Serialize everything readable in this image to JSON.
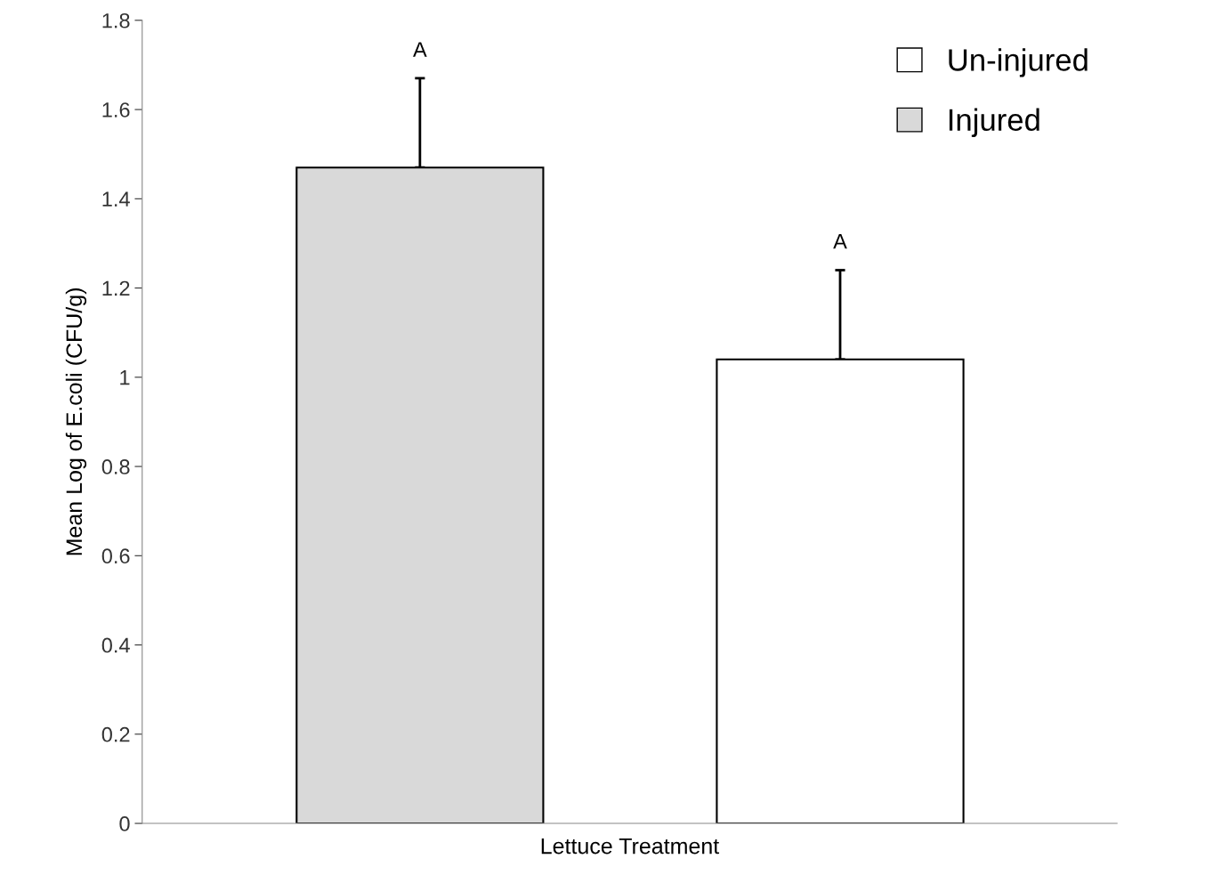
{
  "chart_data": {
    "type": "bar",
    "xlabel": "Lettuce Treatment",
    "ylabel": "Mean Log of E.coli (CFU/g)",
    "categories": [
      null,
      null
    ],
    "series": [
      {
        "name": "Un-injured",
        "color": "#ffffff",
        "values": [
          null,
          1.04
        ],
        "errors": [
          null,
          [
            1.04,
            1.24
          ]
        ]
      },
      {
        "name": "Injured",
        "color": "#d9d9d9",
        "values": [
          1.47,
          null
        ],
        "errors": [
          [
            1.47,
            1.67
          ],
          null
        ]
      }
    ],
    "annotations": [
      "A",
      "A"
    ],
    "ylim": [
      0,
      1.8
    ],
    "yticks": [
      0,
      0.2,
      0.4,
      0.6,
      0.8,
      1,
      1.2,
      1.4,
      1.6,
      1.8
    ],
    "grid": false,
    "legend": "top right"
  }
}
